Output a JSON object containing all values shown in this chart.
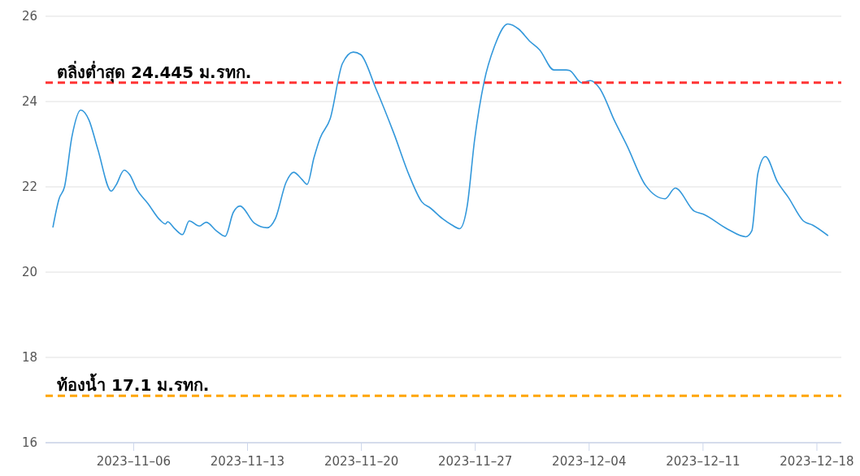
{
  "chart_data": {
    "type": "line",
    "x": [
      "2023-11-01T01:00",
      "2023-11-01T10:00",
      "2023-11-01T18:00",
      "2023-11-02T05:00",
      "2023-11-02T18:00",
      "2023-11-03T06:00",
      "2023-11-03T19:00",
      "2023-11-04T15:00",
      "2023-11-04T22:00",
      "2023-11-05T10:00",
      "2023-11-05T18:00",
      "2023-11-06T05:00",
      "2023-11-06T21:00",
      "2023-11-07T15:00",
      "2023-11-07T23:00",
      "2023-11-08T02:00",
      "2023-11-08T13:00",
      "2023-11-09T00:00",
      "2023-11-09T10:00",
      "2023-11-10T01:00",
      "2023-11-10T11:00",
      "2023-11-11T02:00",
      "2023-11-11T15:00",
      "2023-11-12T03:00",
      "2023-11-12T13:00",
      "2023-11-13T10:00",
      "2023-11-14T05:00",
      "2023-11-14T17:00",
      "2023-11-15T09:00",
      "2023-11-15T20:00",
      "2023-11-16T08:00",
      "2023-11-16T16:00",
      "2023-11-17T02:00",
      "2023-11-17T11:00",
      "2023-11-18T02:00",
      "2023-11-18T20:00",
      "2023-11-19T12:00",
      "2023-11-19T23:00",
      "2023-11-20T21:00",
      "2023-11-22T00:00",
      "2023-11-22T23:00",
      "2023-11-23T17:00",
      "2023-11-24T06:00",
      "2023-11-25T00:00",
      "2023-11-25T13:00",
      "2023-11-26T01:00",
      "2023-11-26T12:00",
      "2023-11-26T23:00",
      "2023-11-27T13:00",
      "2023-11-28T04:00",
      "2023-11-29T00:00",
      "2023-11-29T16:00",
      "2023-11-30T08:00",
      "2023-11-30T23:00",
      "2023-12-01T20:00",
      "2023-12-02T14:00",
      "2023-12-02T19:00",
      "2023-12-03T13:00",
      "2023-12-04T02:00",
      "2023-12-04T15:00",
      "2023-12-05T14:00",
      "2023-12-06T08:00",
      "2023-12-07T11:00",
      "2023-12-08T16:00",
      "2023-12-09T07:00",
      "2023-12-10T11:00",
      "2023-12-11T00:00",
      "2023-12-12T12:00",
      "2023-12-13T15:00",
      "2023-12-14T00:00",
      "2023-12-14T09:00",
      "2023-12-14T20:00",
      "2023-12-15T14:00",
      "2023-12-16T06:00",
      "2023-12-17T04:00",
      "2023-12-17T18:00",
      "2023-12-18T16:00"
    ],
    "series": [
      {
        "color": "#3398db",
        "values": [
          21.06,
          21.72,
          22.0,
          23.18,
          23.8,
          23.57,
          22.89,
          21.9,
          22.04,
          22.39,
          22.29,
          21.93,
          21.61,
          21.22,
          21.13,
          21.18,
          21.01,
          20.88,
          21.2,
          21.08,
          21.17,
          20.97,
          20.84,
          21.4,
          21.55,
          21.15,
          21.04,
          21.25,
          22.11,
          22.34,
          22.18,
          22.06,
          22.68,
          23.14,
          23.6,
          24.89,
          25.16,
          25.1,
          24.32,
          23.25,
          22.25,
          21.65,
          21.5,
          21.25,
          21.11,
          21.02,
          21.54,
          23.1,
          24.46,
          25.28,
          25.82,
          25.7,
          25.42,
          25.21,
          24.74,
          24.74,
          24.73,
          24.44,
          24.49,
          24.32,
          23.53,
          22.96,
          22.04,
          21.72,
          21.97,
          21.43,
          21.36,
          21.01,
          20.83,
          20.97,
          22.32,
          22.71,
          22.11,
          21.75,
          21.2,
          21.1,
          20.86
        ]
      }
    ],
    "xlim": [
      "2023-10-31T14:00",
      "2023-12-19T12:00"
    ],
    "xticks": [
      {
        "value": "2023-11-06",
        "label": "2023–11–06"
      },
      {
        "value": "2023-11-13",
        "label": "2023–11–13"
      },
      {
        "value": "2023-11-20",
        "label": "2023–11–20"
      },
      {
        "value": "2023-11-27",
        "label": "2023–11–27"
      },
      {
        "value": "2023-12-04",
        "label": "2023–12–04"
      },
      {
        "value": "2023-12-11",
        "label": "2023–12–11"
      },
      {
        "value": "2023-12-18",
        "label": "2023–12–18"
      }
    ],
    "ylim": [
      16,
      26
    ],
    "yticks": [
      16,
      18,
      20,
      22,
      24,
      26
    ],
    "grid": "y",
    "marker": "none",
    "line_style": "solid",
    "ref_lines": [
      {
        "axis": "y",
        "value": 24.445,
        "label": "ตลิ่งต่ำสุด 24.445 ม.รทก.",
        "color": "#ff3333",
        "line_style": "dashed"
      },
      {
        "axis": "y",
        "value": 17.1,
        "label": "ท้องน้ำ 17.1 ม.รทก.",
        "color": "#ffa500",
        "line_style": "dashed"
      }
    ]
  }
}
